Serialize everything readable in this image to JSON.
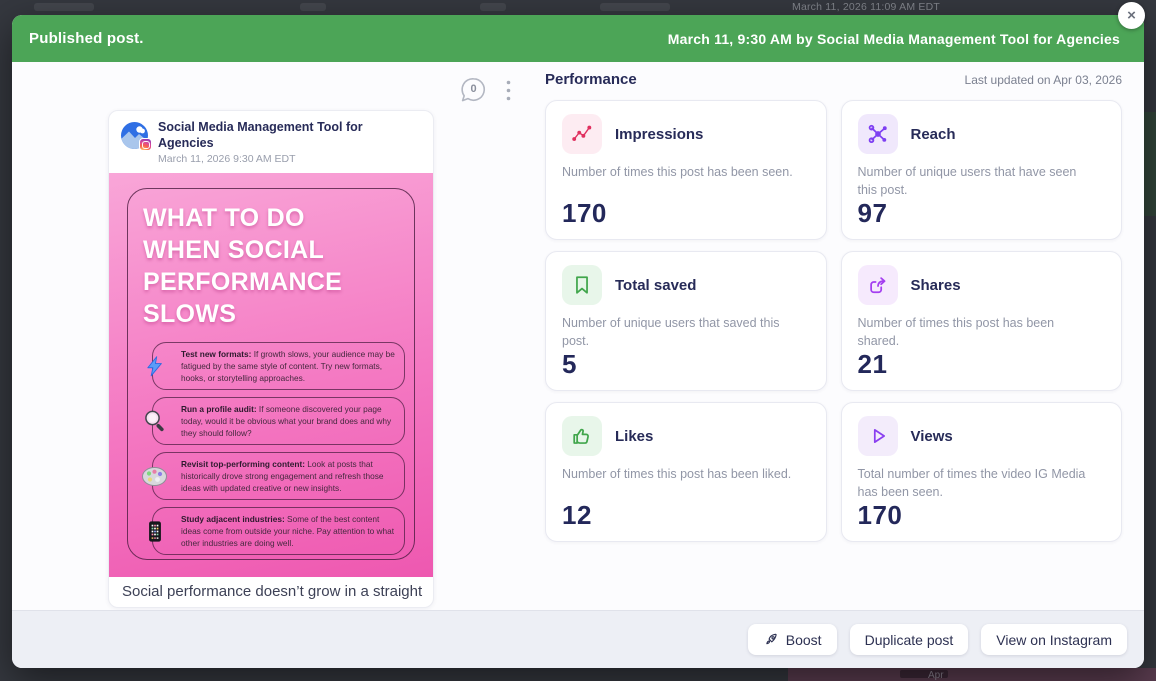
{
  "backdrop": {
    "time_label": "March 11, 2026 11:09 AM EDT",
    "month_hint": "Apr"
  },
  "modal": {
    "header": {
      "title": "Published post.",
      "subtitle": "March 11, 9:30 AM by Social Media Management Tool for Agencies",
      "close_glyph": "×"
    },
    "last_updated": "Last updated on Apr 03, 2026",
    "post": {
      "author": "Social Media Management Tool for Agencies",
      "timestamp": "March 11, 2026 9:30 AM EDT",
      "comments_count": "0",
      "caption": "Social performance doesn’t grow in a straight",
      "image": {
        "title": "WHAT TO DO WHEN SOCIAL PERFORMANCE SLOWS",
        "items": [
          {
            "icon": "lightning-icon",
            "lead": "Test new formats:",
            "text": " If growth slows, your audience may be fatigued by the same style of content. Try new formats, hooks, or storytelling approaches."
          },
          {
            "icon": "magnifier-icon",
            "lead": "Run a profile audit:",
            "text": " If someone discovered your page today, would it be obvious what your brand does and why they should follow?"
          },
          {
            "icon": "palette-icon",
            "lead": "Revisit top-performing content:",
            "text": " Look at posts that historically drove strong engagement and refresh those ideas with updated creative or new insights."
          },
          {
            "icon": "phone-icon",
            "lead": "Study adjacent industries:",
            "text": " Some of the best content ideas come from outside your niche. Pay attention to what other industries are doing well."
          }
        ]
      }
    },
    "performance": {
      "heading": "Performance",
      "metrics": [
        {
          "name": "Impressions",
          "description": "Number of times this post has been seen.",
          "value": "170",
          "icon": "impressions-icon",
          "accent": "#E0305F",
          "tile": "#FDECF2"
        },
        {
          "name": "Reach",
          "description": "Number of unique users that have seen this post.",
          "value": "97",
          "icon": "reach-icon",
          "accent": "#7E3FF2",
          "tile": "#F0E8FC"
        },
        {
          "name": "Total saved",
          "description": "Number of unique users that saved this post.",
          "value": "5",
          "icon": "bookmark-icon",
          "accent": "#41A64C",
          "tile": "#E8F6EA"
        },
        {
          "name": "Shares",
          "description": "Number of times this post has been shared.",
          "value": "21",
          "icon": "share-icon",
          "accent": "#A43EF0",
          "tile": "#F6EAFD"
        },
        {
          "name": "Likes",
          "description": "Number of times this post has been liked.",
          "value": "12",
          "icon": "thumbs-up-icon",
          "accent": "#41A64C",
          "tile": "#E8F6EA"
        },
        {
          "name": "Views",
          "description": "Total number of times the video IG Media has been seen.",
          "value": "170",
          "icon": "play-icon",
          "accent": "#8A3FF0",
          "tile": "#F3ECFB"
        }
      ]
    },
    "footer": {
      "boost": "Boost",
      "duplicate": "Duplicate post",
      "view": "View on Instagram"
    }
  }
}
